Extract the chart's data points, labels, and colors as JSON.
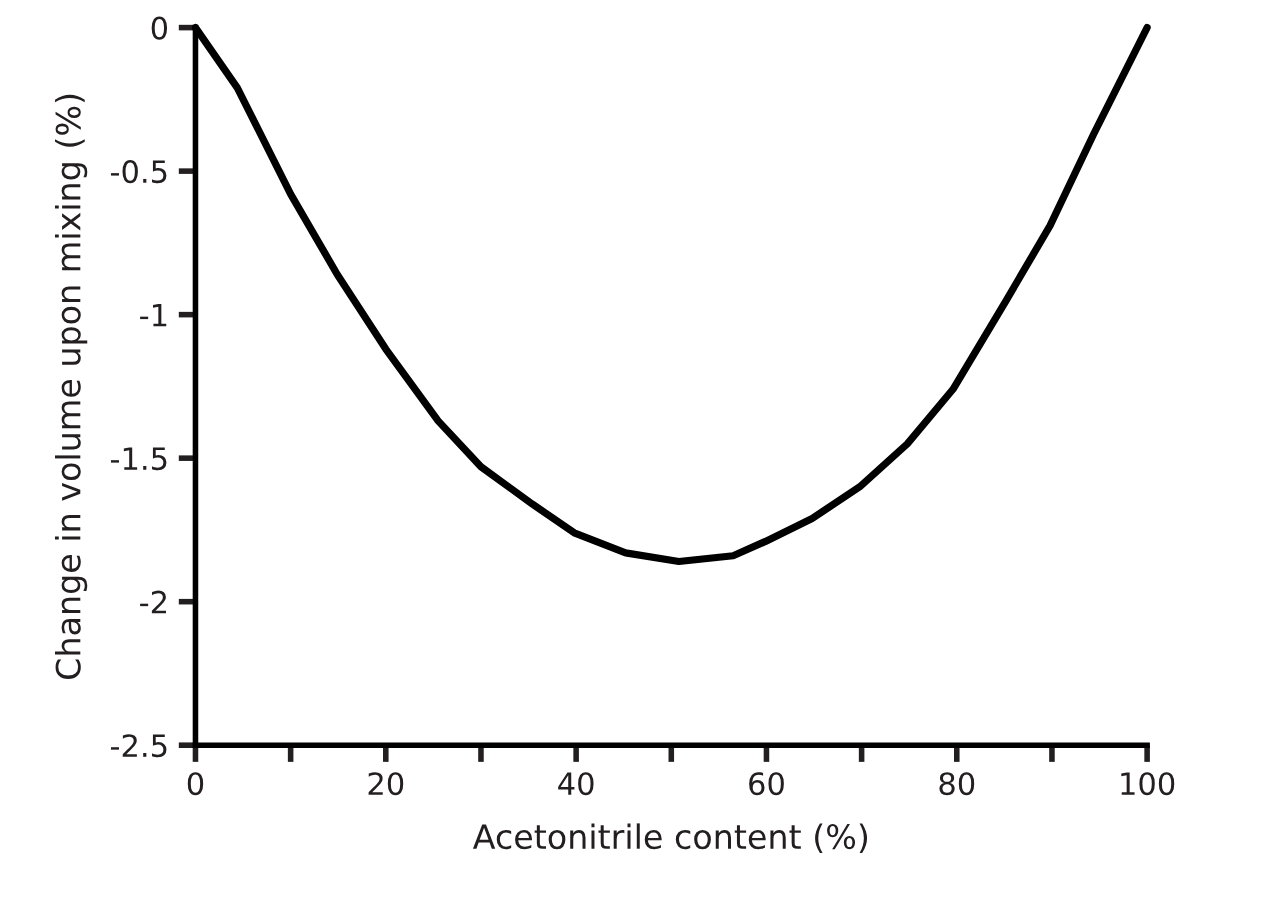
{
  "chart_data": {
    "type": "line",
    "xlabel": "Acetonitrile content (%)",
    "ylabel": "Change in volume upon mixing (%)",
    "series": [
      {
        "color": "#000000",
        "x": [
          0,
          4.4,
          10,
          14.9,
          20,
          25.5,
          30,
          35.4,
          39.8,
          45.2,
          50.8,
          56.5,
          59.9,
          64.8,
          69.8,
          74.8,
          79.6,
          85.2,
          89.8,
          94.4,
          100
        ],
        "values": [
          0,
          -0.21,
          -0.58,
          -0.86,
          -1.12,
          -1.37,
          -1.53,
          -1.66,
          -1.76,
          -1.83,
          -1.86,
          -1.84,
          -1.79,
          -1.71,
          -1.6,
          -1.45,
          -1.26,
          -0.95,
          -0.69,
          -0.37,
          0
        ]
      }
    ],
    "xlim": [
      0,
      100
    ],
    "xticks": [
      0,
      {
        "value": 10,
        "label": null
      },
      20,
      {
        "value": 30,
        "label": null
      },
      40,
      {
        "value": 50,
        "label": null
      },
      60,
      {
        "value": 70,
        "label": null
      },
      80,
      {
        "value": 90,
        "label": null
      },
      100
    ],
    "ylim": [
      -2.5,
      0
    ],
    "yticks": [
      {
        "value": -2.5,
        "label": "-2.5"
      },
      {
        "value": -2,
        "label": "-2"
      },
      {
        "value": -1.5,
        "label": "-1.5"
      },
      {
        "value": -1,
        "label": "-1"
      },
      {
        "value": -0.5,
        "label": "-0.5"
      },
      0
    ],
    "grid": false,
    "legend": false,
    "marker": "none",
    "line_style": "solid"
  }
}
